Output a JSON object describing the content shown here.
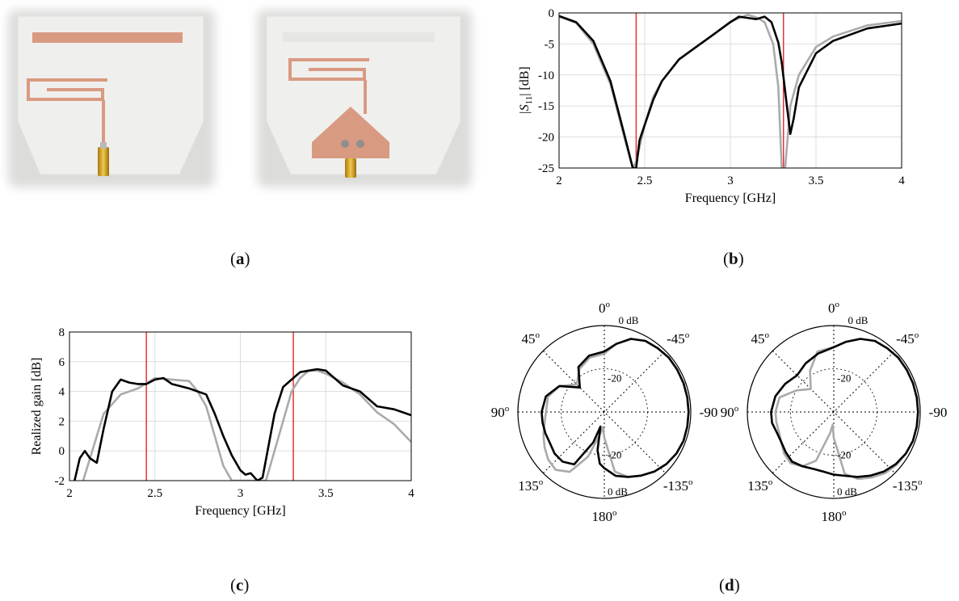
{
  "captions": {
    "a": "a",
    "b": "b",
    "c": "c",
    "d": "d"
  },
  "colors": {
    "copper": "#d99a82",
    "board": "#ececea",
    "measured": "#000000",
    "simulated": "#aaaaaa",
    "marker": "#e53333",
    "grid": "#dddddd"
  },
  "chart_data": [
    {
      "id": "b",
      "type": "line",
      "xlabel": "Frequency [GHz]",
      "ylabel_main": "|S",
      "ylabel_sub": "11",
      "ylabel_tail": "| [dB]",
      "xlim": [
        2,
        4
      ],
      "ylim": [
        -25,
        0
      ],
      "xticks": [
        2,
        2.5,
        3,
        3.5,
        4
      ],
      "xtick_labels": [
        "2",
        "2.5",
        "3",
        "3.5",
        "4"
      ],
      "yticks": [
        0,
        -5,
        -10,
        -15,
        -20,
        -25
      ],
      "ytick_labels": [
        "0",
        "-5",
        "-10",
        "-15",
        "-20",
        "-25"
      ],
      "grid": true,
      "markers": [
        2.45,
        3.31
      ],
      "series": [
        {
          "style": "black",
          "x": [
            2,
            2.1,
            2.2,
            2.3,
            2.38,
            2.43,
            2.45,
            2.47,
            2.55,
            2.6,
            2.7,
            2.8,
            2.9,
            3.0,
            3.05,
            3.1,
            3.15,
            3.2,
            3.24,
            3.28,
            3.3,
            3.33,
            3.35,
            3.37,
            3.4,
            3.5,
            3.6,
            3.8,
            4.0
          ],
          "y": [
            -0.5,
            -1.5,
            -4.5,
            -11,
            -19.5,
            -25,
            -25,
            -20.5,
            -14,
            -11,
            -7.5,
            -5.5,
            -3.5,
            -1.5,
            -0.6,
            -0.8,
            -1.0,
            -0.6,
            -1.5,
            -4.8,
            -8,
            -15,
            -19.5,
            -17,
            -12,
            -6.5,
            -4.5,
            -2.5,
            -1.7
          ]
        },
        {
          "style": "gray",
          "x": [
            2,
            2.1,
            2.2,
            2.3,
            2.38,
            2.43,
            2.45,
            2.5,
            2.55,
            2.6,
            2.7,
            2.8,
            2.9,
            3.0,
            3.1,
            3.15,
            3.2,
            3.25,
            3.28,
            3.3,
            3.32,
            3.35,
            3.4,
            3.5,
            3.6,
            3.8,
            4.0
          ],
          "y": [
            -0.6,
            -1.6,
            -5,
            -11.5,
            -20,
            -25,
            -24,
            -18,
            -13.5,
            -11,
            -7.5,
            -5.5,
            -3.5,
            -1.4,
            -0.3,
            -0.7,
            -1.5,
            -5,
            -12,
            -25,
            -25,
            -15,
            -10,
            -5.5,
            -3.8,
            -2,
            -1.3
          ]
        }
      ]
    },
    {
      "id": "c",
      "type": "line",
      "xlabel": "Frequency [GHz]",
      "ylabel": "Realized gain [dB]",
      "xlim": [
        2,
        4
      ],
      "ylim": [
        -2,
        8
      ],
      "xticks": [
        2,
        2.5,
        3,
        3.5,
        4
      ],
      "xtick_labels": [
        "2",
        "2.5",
        "3",
        "3.5",
        "4"
      ],
      "yticks": [
        8,
        6,
        4,
        2,
        0,
        -2
      ],
      "ytick_labels": [
        "8",
        "6",
        "4",
        "2",
        "0",
        "-2"
      ],
      "grid": true,
      "markers": [
        2.45,
        3.31
      ],
      "series": [
        {
          "style": "black",
          "x": [
            2.03,
            2.06,
            2.09,
            2.12,
            2.16,
            2.2,
            2.25,
            2.3,
            2.35,
            2.4,
            2.45,
            2.5,
            2.55,
            2.6,
            2.7,
            2.8,
            2.85,
            2.9,
            2.95,
            3.0,
            3.03,
            3.06,
            3.1,
            3.13,
            3.2,
            3.25,
            3.3,
            3.35,
            3.4,
            3.45,
            3.5,
            3.6,
            3.7,
            3.8,
            3.9,
            4.0
          ],
          "y": [
            -2,
            -0.5,
            0,
            -0.5,
            -0.8,
            1.5,
            4,
            4.8,
            4.6,
            4.5,
            4.5,
            4.8,
            4.9,
            4.5,
            4.2,
            3.8,
            2.5,
            1,
            -0.3,
            -1.3,
            -1.6,
            -1.5,
            -2,
            -1.8,
            2.5,
            4.3,
            4.8,
            5.3,
            5.4,
            5.5,
            5.4,
            4.4,
            4,
            3,
            2.8,
            2.4
          ]
        },
        {
          "style": "gray",
          "x": [
            2.08,
            2.12,
            2.16,
            2.2,
            2.3,
            2.4,
            2.5,
            2.6,
            2.7,
            2.75,
            2.8,
            2.85,
            2.9,
            2.95,
            3.15,
            3.2,
            3.25,
            3.3,
            3.35,
            3.4,
            3.45,
            3.5,
            3.6,
            3.7,
            3.8,
            3.9,
            4.0
          ],
          "y": [
            -2,
            -0.5,
            1,
            2.5,
            3.8,
            4.2,
            4.9,
            4.8,
            4.7,
            4,
            3,
            1,
            -1,
            -2,
            -2,
            0,
            2,
            4,
            4.9,
            5.4,
            5.4,
            5.2,
            4.6,
            3.8,
            2.6,
            1.8,
            0.6
          ]
        }
      ]
    },
    {
      "id": "d",
      "type": "polar",
      "angle_labels": [
        {
          "deg": 0,
          "main": "0",
          "sup": "o"
        },
        {
          "deg": 45,
          "main": "45",
          "sup": "o"
        },
        {
          "deg": -45,
          "main": "-45",
          "sup": "o"
        },
        {
          "deg": 90,
          "main": "90",
          "sup": "o"
        },
        {
          "deg": -90,
          "main": "-90",
          "sup": ""
        },
        {
          "deg": 135,
          "main": "135",
          "sup": "o"
        },
        {
          "deg": -135,
          "main": "-135",
          "sup": "o"
        },
        {
          "deg": 180,
          "main": "180",
          "sup": "o"
        }
      ],
      "ring_labels": [
        "0 dB",
        "-20",
        "-20",
        "0 dB"
      ],
      "rlim": [
        -40,
        0
      ],
      "plots": [
        {
          "measured": {
            "theta": [
              0,
              15,
              30,
              45,
              60,
              75,
              90,
              100,
              110,
              120,
              130,
              140,
              150,
              160,
              165,
              170,
              175,
              180,
              190,
              200,
              210,
              220,
              230,
              240,
              250,
              260,
              270,
              280,
              290,
              300,
              310,
              320,
              330,
              340,
              350,
              360
            ],
            "r": [
              -12,
              -13,
              -16,
              -24,
              -16,
              -12,
              -11,
              -11,
              -11,
              -11,
              -10,
              -10,
              -12,
              -25,
              -33,
              -22,
              -16,
              -14,
              -10,
              -8,
              -6,
              -4,
              -2.5,
              -1.5,
              -1,
              -1,
              -1,
              -1,
              -1,
              -1,
              -1,
              -1.5,
              -2,
              -4,
              -8,
              -12
            ]
          },
          "simulated": {
            "theta": [
              0,
              15,
              30,
              45,
              60,
              75,
              90,
              100,
              110,
              120,
              130,
              140,
              150,
              160,
              170,
              175,
              180,
              190,
              200,
              210,
              220,
              230,
              240,
              250,
              260,
              270,
              280,
              290,
              300,
              310,
              320,
              330,
              340,
              350,
              360
            ],
            "r": [
              -13,
              -14,
              -17,
              -22,
              -16,
              -13,
              -13,
              -12,
              -10,
              -8,
              -6,
              -5,
              -8,
              -18,
              -30,
              -33,
              -28,
              -12,
              -8,
              -6,
              -4,
              -2.5,
              -1.5,
              -1,
              -1,
              -1,
              -1,
              -1,
              -1,
              -1,
              -1.5,
              -2,
              -4,
              -8,
              -13
            ]
          }
        },
        {
          "measured": {
            "theta": [
              0,
              15,
              30,
              45,
              60,
              75,
              90,
              100,
              110,
              120,
              130,
              140,
              150,
              160,
              170,
              180,
              190,
              200,
              210,
              220,
              230,
              240,
              250,
              260,
              270,
              280,
              290,
              300,
              310,
              320,
              330,
              340,
              350,
              360
            ],
            "r": [
              -10,
              -12,
              -14,
              -16,
              -14,
              -12,
              -11,
              -11,
              -12,
              -12,
              -11,
              -10,
              -11,
              -12,
              -12,
              -11,
              -10,
              -8,
              -6,
              -4,
              -2.5,
              -1.5,
              -1,
              -1,
              -1,
              -1,
              -1,
              -1,
              -1,
              -1.5,
              -2,
              -4,
              -7,
              -10
            ]
          },
          "simulated": {
            "theta": [
              0,
              15,
              30,
              45,
              60,
              75,
              90,
              100,
              110,
              120,
              130,
              140,
              150,
              160,
              170,
              175,
              180,
              190,
              200,
              210,
              220,
              230,
              240,
              250,
              260,
              270,
              280,
              290,
              300,
              310,
              320,
              330,
              340,
              350,
              360
            ],
            "r": [
              -10,
              -11,
              -18,
              -25,
              -20,
              -14,
              -13,
              -13,
              -13,
              -12,
              -10,
              -9,
              -11,
              -16,
              -30,
              -34,
              -28,
              -11,
              -7,
              -5,
              -3,
              -2,
              -1.5,
              -1,
              -1,
              -1,
              -1,
              -1,
              -1,
              -1,
              -1.5,
              -2,
              -4,
              -7,
              -10
            ]
          }
        }
      ]
    }
  ]
}
